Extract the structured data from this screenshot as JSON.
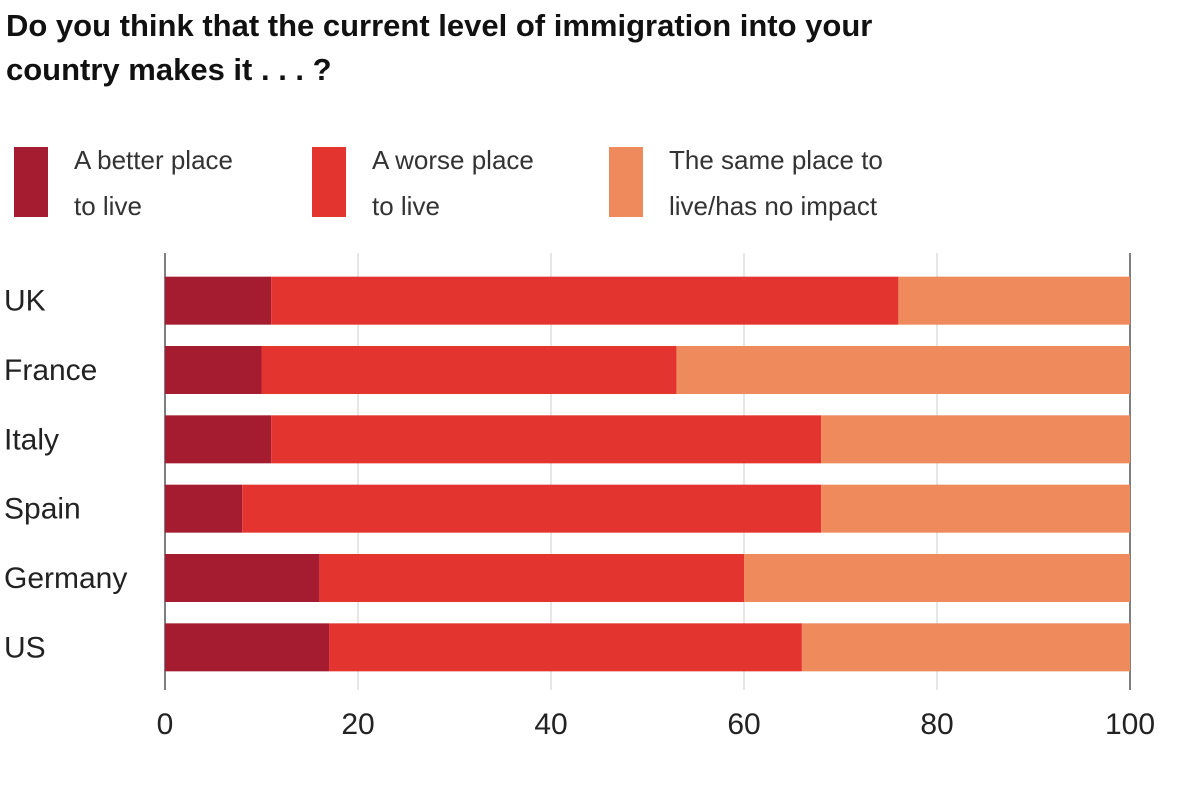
{
  "chart_data": {
    "type": "stacked-bar-horizontal",
    "title": "Do you think that the current level of immigration into your country makes it . . . ?",
    "categories": [
      "UK",
      "France",
      "Italy",
      "Spain",
      "Germany",
      "US"
    ],
    "series": [
      {
        "name": "A better place to live",
        "color": "#a51c30",
        "values": [
          11,
          10,
          11,
          8,
          16,
          17
        ]
      },
      {
        "name": "A worse place to live",
        "color": "#e3342f",
        "values": [
          65,
          43,
          57,
          60,
          44,
          49
        ]
      },
      {
        "name": "The same place to live/has no impact",
        "color": "#ee8a5b",
        "values": [
          24,
          47,
          32,
          32,
          40,
          34
        ]
      }
    ],
    "xlim": [
      0,
      100
    ],
    "xticks": [
      0,
      20,
      40,
      60,
      80,
      100
    ],
    "grid": true
  }
}
